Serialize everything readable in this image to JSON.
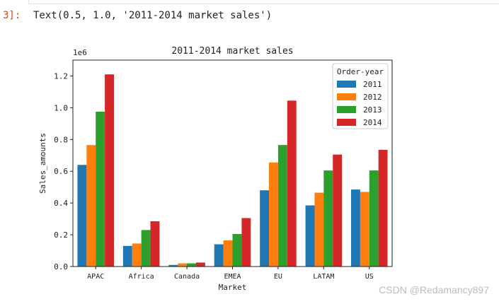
{
  "cell": {
    "prompt": "3]:",
    "output_text": "Text(0.5, 1.0, '2011-2014 market sales')"
  },
  "watermark": "CSDN @Redamancy897",
  "chart_data": {
    "type": "bar",
    "title": "2011-2014 market sales",
    "xlabel": "Market",
    "ylabel": "Sales_amounts",
    "y_offset_label": "1e6",
    "categories": [
      "APAC",
      "Africa",
      "Canada",
      "EMEA",
      "EU",
      "LATAM",
      "US"
    ],
    "ylim": [
      0,
      1.3
    ],
    "yticks": [
      0.0,
      0.2,
      0.4,
      0.6,
      0.8,
      1.0,
      1.2
    ],
    "ytick_labels": [
      "0.0",
      "0.2",
      "0.4",
      "0.6",
      "0.8",
      "1.0",
      "1.2"
    ],
    "legend": {
      "title": "Order-year",
      "placement": "top-right"
    },
    "grid": false,
    "series": [
      {
        "name": "2011",
        "color": "#1f77b4",
        "values": [
          0.64,
          0.13,
          0.01,
          0.14,
          0.48,
          0.385,
          0.485
        ]
      },
      {
        "name": "2012",
        "color": "#ff7f0e",
        "values": [
          0.765,
          0.145,
          0.02,
          0.165,
          0.655,
          0.465,
          0.47
        ]
      },
      {
        "name": "2013",
        "color": "#2ca02c",
        "values": [
          0.975,
          0.23,
          0.02,
          0.205,
          0.765,
          0.605,
          0.605
        ]
      },
      {
        "name": "2014",
        "color": "#d62728",
        "values": [
          1.21,
          0.285,
          0.025,
          0.305,
          1.045,
          0.705,
          0.735
        ]
      }
    ]
  }
}
